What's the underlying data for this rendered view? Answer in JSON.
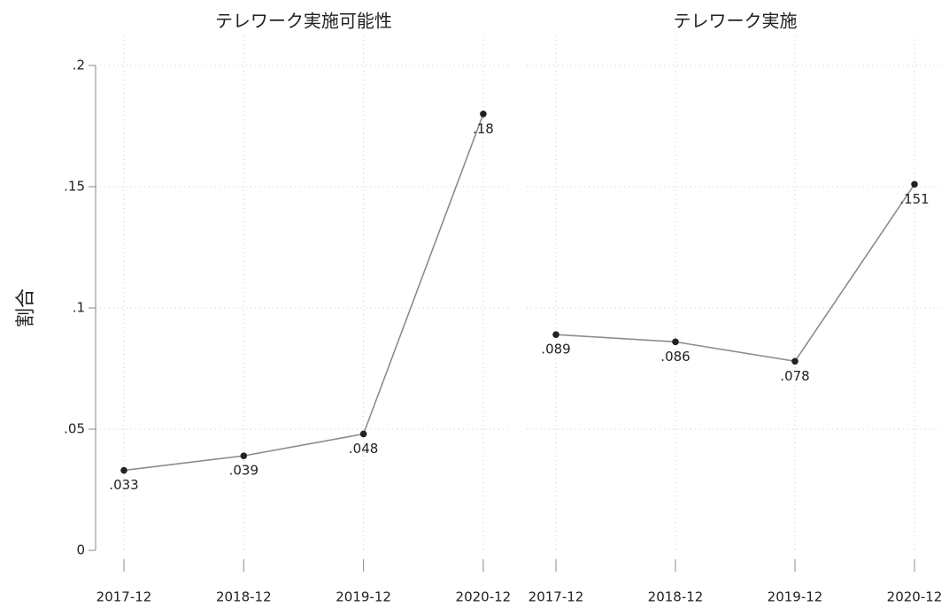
{
  "chart_data": [
    {
      "type": "line",
      "title": "テレワーク実施可能性",
      "ylabel": "割合",
      "categories": [
        "2017-12",
        "2018-12",
        "2019-12",
        "2020-12"
      ],
      "values": [
        0.033,
        0.039,
        0.048,
        0.18
      ],
      "value_labels": [
        ".033",
        ".039",
        ".048",
        ".18"
      ],
      "color": "#8c8c8c",
      "marker_color": "#222222",
      "ylim": [
        0,
        0.2
      ],
      "yticks": [
        0,
        {
          "value": 0.05,
          "label": ".05"
        },
        {
          "value": 0.1,
          "label": ".1"
        },
        {
          "value": 0.15,
          "label": ".15"
        },
        {
          "value": 0.2,
          "label": ".2"
        }
      ],
      "grid": true
    },
    {
      "type": "line",
      "title": "テレワーク実施",
      "categories": [
        "2017-12",
        "2018-12",
        "2019-12",
        "2020-12"
      ],
      "values": [
        0.089,
        0.086,
        0.078,
        0.151
      ],
      "value_labels": [
        ".089",
        ".086",
        ".078",
        ".151"
      ],
      "color": "#8c8c8c",
      "marker_color": "#222222",
      "ylim": [
        0,
        0.2
      ],
      "yticks": [
        0,
        0.05,
        0.1,
        0.15,
        0.2
      ],
      "grid": true
    }
  ]
}
